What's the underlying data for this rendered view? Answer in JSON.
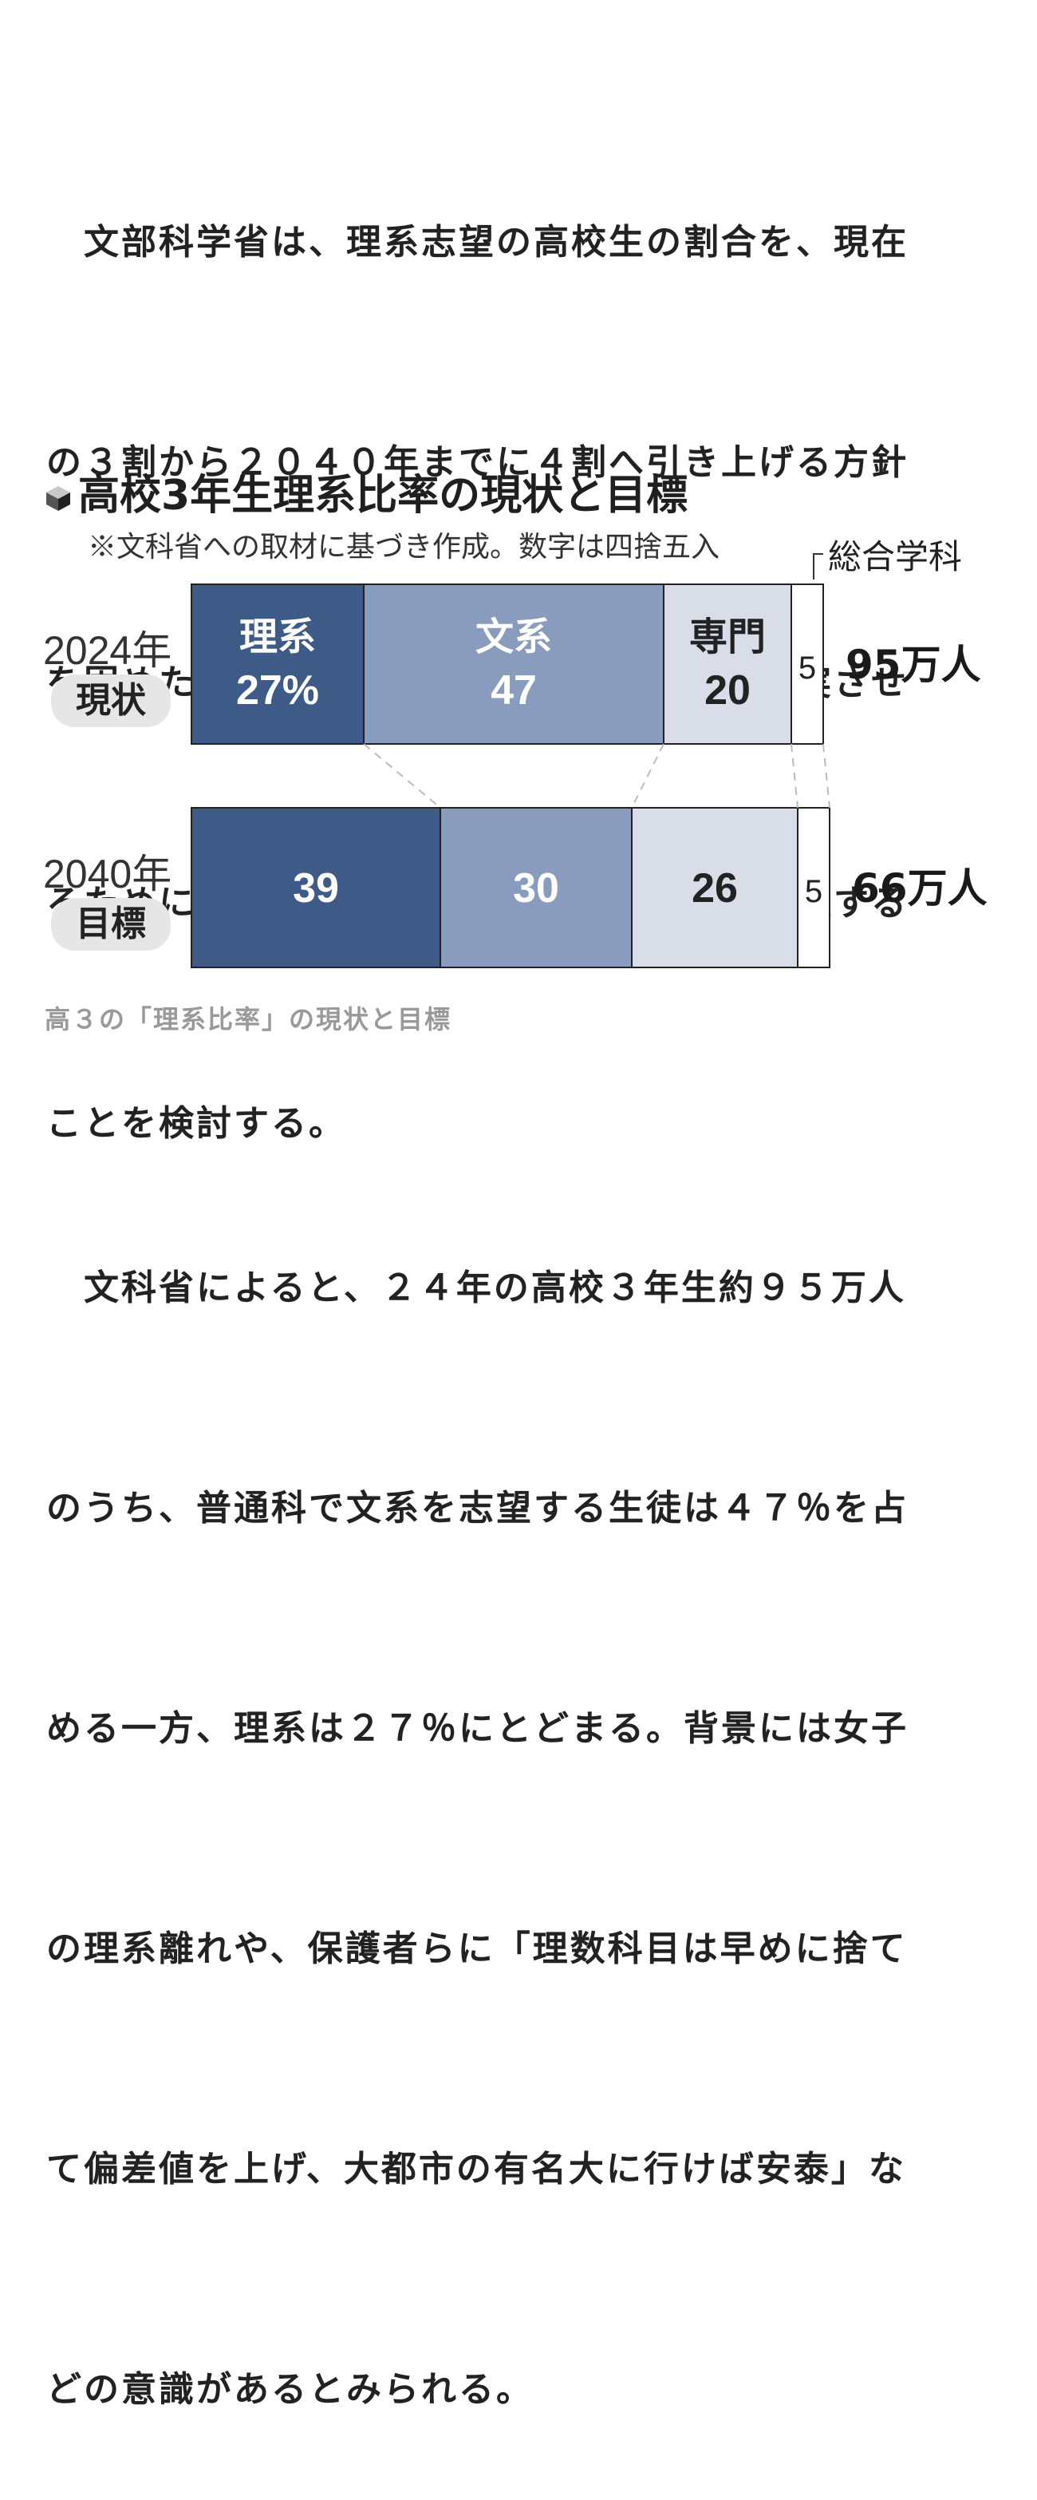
{
  "paragraph_1": [
    "　文部科学省は、理系志望の高校生の割合を、現在",
    "の３割から２０４０年までに４割へ引き上げる方針",
    "を固めた。高校で理科や数学などの教育を充実させ",
    "るために３０００億円の基金を２６年度に新設する",
    "ことを検討する。"
  ],
  "chart_title": "高校3年生理系比率の現状と目標",
  "chart_note": "※文科省への取材に基づき作成。数字は四捨五入",
  "chart_data": {
    "type": "bar",
    "orientation": "horizontal",
    "stacked": true,
    "categories": [
      "2024年 現状",
      "2040年 目標"
    ],
    "segment_labels": [
      "理系",
      "文系",
      "専門",
      "総合学科"
    ],
    "colors": [
      "#3e5a86",
      "#8a9cbd",
      "#d9dde8",
      "#ffffff"
    ],
    "rows": [
      {
        "year": "2024年",
        "tag": "現状",
        "values": [
          27,
          47,
          20,
          5
        ],
        "value_labels": [
          "27%",
          "47",
          "20",
          "5"
        ],
        "total": 950000,
        "total_label": "95万人"
      },
      {
        "year": "2040年",
        "tag": "目標",
        "values": [
          39,
          30,
          26,
          5
        ],
        "value_labels": [
          "39",
          "30",
          "26",
          "5"
        ],
        "total": 660000,
        "total_label": "66万人"
      }
    ]
  },
  "caption": "高３の「理系比率」の現状と目標",
  "paragraph_2": [
    "　文科省によると、２４年の高校３年生約９５万人",
    "のうち、普通科で文系を志望する生徒は４７％を占",
    "める一方、理系は２７％にとどまる。背景には女子",
    "の理系離れや、保護者らに「理数科目は早めに捨て",
    "て偏差値を上げ、大都市の有名大に行けば安泰」な",
    "どの意識があるとみられる。"
  ]
}
